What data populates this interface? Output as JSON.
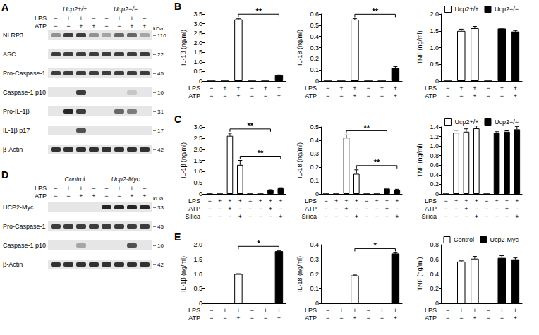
{
  "chart_data": [
    {
      "type": "bar",
      "panel_label": "B",
      "ylabel": "IL-1β (ng/ml)",
      "ylim": [
        0,
        3.5
      ],
      "yticks": [
        0,
        0.5,
        {
          "value": 1,
          "label": "1.0"
        },
        1.5,
        {
          "value": 2,
          "label": "2.0"
        },
        2.5,
        {
          "value": 3,
          "label": "3.0"
        },
        3.5
      ],
      "treatments": [
        {
          "label": "LPS",
          "signs": [
            "−",
            "+",
            "+",
            "−",
            "+",
            "+"
          ]
        },
        {
          "label": "ATP",
          "signs": [
            "−",
            "−",
            "+",
            "−",
            "−",
            "+"
          ]
        }
      ],
      "series": [
        {
          "color": "#ffffff",
          "values": [
            0,
            0,
            3.22,
            null,
            null,
            null
          ],
          "errors": [
            0,
            0,
            0.05,
            null,
            null,
            null
          ]
        },
        {
          "color": "#000000",
          "values": [
            null,
            null,
            null,
            0,
            0,
            0.3
          ],
          "errors": [
            null,
            null,
            null,
            0,
            0,
            0.02
          ]
        }
      ],
      "annotations": [
        {
          "from": 2,
          "to": 5,
          "label": "**"
        }
      ]
    },
    {
      "type": "bar",
      "ylabel": "IL-18 (ng/ml)",
      "ylim": [
        0,
        0.6
      ],
      "yticks": [
        0,
        0.1,
        0.2,
        0.3,
        0.4,
        0.5,
        0.6
      ],
      "treatments": [
        {
          "label": "LPS",
          "signs": [
            "−",
            "+",
            "+",
            "−",
            "+",
            "+"
          ]
        },
        {
          "label": "ATP",
          "signs": [
            "−",
            "−",
            "+",
            "−",
            "−",
            "+"
          ]
        }
      ],
      "series": [
        {
          "color": "#ffffff",
          "values": [
            0,
            0,
            0.55,
            null,
            null,
            null
          ],
          "errors": [
            0,
            0,
            0.01,
            null,
            null,
            null
          ]
        },
        {
          "color": "#000000",
          "values": [
            null,
            null,
            null,
            0,
            0,
            0.12
          ],
          "errors": [
            null,
            null,
            null,
            0,
            0,
            0.01
          ]
        }
      ],
      "annotations": [
        {
          "from": 2,
          "to": 5,
          "label": "**"
        }
      ]
    },
    {
      "type": "bar",
      "ylabel": "TNF (ng/ml)",
      "legend": "upper right",
      "ylim": [
        0,
        2
      ],
      "yticks": [
        0,
        0.5,
        {
          "value": 1,
          "label": "1.0"
        },
        1.5,
        {
          "value": 2,
          "label": "2.0"
        }
      ],
      "treatments": [
        {
          "label": "LPS",
          "signs": [
            "−",
            "+",
            "+",
            "−",
            "+",
            "+"
          ]
        },
        {
          "label": "ATP",
          "signs": [
            "−",
            "−",
            "+",
            "−",
            "−",
            "+"
          ]
        }
      ],
      "series": [
        {
          "name": "Ucp2+/+",
          "color": "#ffffff",
          "values": [
            0,
            1.5,
            1.58,
            null,
            null,
            null
          ],
          "errors": [
            0,
            0.05,
            0.05,
            null,
            null,
            null
          ]
        },
        {
          "name": "Ucp2−/−",
          "color": "#000000",
          "values": [
            null,
            null,
            null,
            0,
            1.57,
            1.48
          ],
          "errors": [
            null,
            null,
            null,
            0,
            0.01,
            0.03
          ]
        }
      ]
    },
    {
      "type": "bar",
      "panel_label": "C",
      "ylabel": "IL-1β (ng/ml)",
      "ylim": [
        0,
        3
      ],
      "yticks": [
        0,
        0.5,
        {
          "value": 1,
          "label": "1.0"
        },
        1.5,
        {
          "value": 2,
          "label": "2.0"
        },
        2.5,
        {
          "value": 3,
          "label": "3.0"
        }
      ],
      "treatments": [
        {
          "label": "LPS",
          "signs": [
            "−",
            "+",
            "+",
            "+",
            "−",
            "+",
            "+",
            "+"
          ]
        },
        {
          "label": "ATP",
          "signs": [
            "−",
            "−",
            "+",
            "−",
            "−",
            "−",
            "+",
            "−"
          ]
        },
        {
          "label": "Silica",
          "signs": [
            "−",
            "−",
            "−",
            "+",
            "−",
            "−",
            "−",
            "+"
          ]
        }
      ],
      "series": [
        {
          "color": "#ffffff",
          "values": [
            0,
            0,
            2.6,
            1.3,
            null,
            null,
            null,
            null
          ],
          "errors": [
            0,
            0,
            0.12,
            0.2,
            null,
            null,
            null,
            null
          ]
        },
        {
          "color": "#000000",
          "values": [
            null,
            null,
            null,
            null,
            0,
            0,
            0.17,
            0.25
          ],
          "errors": [
            null,
            null,
            null,
            null,
            0,
            0,
            0.02,
            0.03
          ]
        }
      ],
      "annotations": [
        {
          "from": 2,
          "to": 6,
          "label": "**"
        },
        {
          "from": 3,
          "to": 7,
          "label": "**"
        }
      ]
    },
    {
      "type": "bar",
      "ylabel": "IL-18 (ng/ml)",
      "ylim": [
        0,
        0.5
      ],
      "yticks": [
        0,
        0.1,
        0.2,
        0.3,
        0.4,
        0.5
      ],
      "treatments": [
        {
          "label": "LPS",
          "signs": [
            "−",
            "+",
            "+",
            "+",
            "−",
            "+",
            "+",
            "+"
          ]
        },
        {
          "label": "ATP",
          "signs": [
            "−",
            "−",
            "+",
            "−",
            "−",
            "−",
            "+",
            "−"
          ]
        },
        {
          "label": "Silica",
          "signs": [
            "−",
            "−",
            "−",
            "+",
            "−",
            "−",
            "−",
            "+"
          ]
        }
      ],
      "series": [
        {
          "color": "#ffffff",
          "values": [
            0,
            0,
            0.42,
            0.15,
            null,
            null,
            null,
            null
          ],
          "errors": [
            0,
            0,
            0.02,
            0.03,
            null,
            null,
            null,
            null
          ]
        },
        {
          "color": "#000000",
          "values": [
            null,
            null,
            null,
            null,
            0,
            0,
            0.04,
            0.03
          ],
          "errors": [
            null,
            null,
            null,
            null,
            0,
            0,
            0.005,
            0.005
          ]
        }
      ],
      "annotations": [
        {
          "from": 2,
          "to": 6,
          "label": "**"
        },
        {
          "from": 3,
          "to": 7,
          "label": "**"
        }
      ]
    },
    {
      "type": "bar",
      "ylabel": "TNF (ng/ml)",
      "legend": "upper right",
      "ylim": [
        0,
        1.4
      ],
      "yticks": [
        0,
        0.2,
        0.4,
        0.6,
        0.8,
        {
          "value": 1,
          "label": "1.0"
        },
        1.2,
        1.4
      ],
      "treatments": [
        {
          "label": "LPS",
          "signs": [
            "−",
            "+",
            "+",
            "+",
            "−",
            "+",
            "+",
            "+"
          ]
        },
        {
          "label": "ATP",
          "signs": [
            "−",
            "−",
            "+",
            "−",
            "−",
            "−",
            "+",
            "−"
          ]
        },
        {
          "label": "Silica",
          "signs": [
            "−",
            "−",
            "−",
            "+",
            "−",
            "−",
            "−",
            "+"
          ]
        }
      ],
      "series": [
        {
          "name": "Ucp2+/+",
          "color": "#ffffff",
          "values": [
            0,
            1.28,
            1.3,
            1.37,
            null,
            null,
            null,
            null
          ],
          "errors": [
            0,
            0.05,
            0.06,
            0.05,
            null,
            null,
            null,
            null
          ]
        },
        {
          "name": "Ucp2−/−",
          "color": "#000000",
          "values": [
            null,
            null,
            null,
            null,
            0,
            1.28,
            1.3,
            1.35
          ],
          "errors": [
            null,
            null,
            null,
            null,
            0,
            0.02,
            0.02,
            0.06
          ]
        }
      ]
    },
    {
      "type": "bar",
      "panel_label": "E",
      "ylabel": "IL-1β (ng/ml)",
      "ylim": [
        0,
        2
      ],
      "yticks": [
        0,
        0.5,
        {
          "value": 1,
          "label": "1.0"
        },
        1.5,
        {
          "value": 2,
          "label": "2.0"
        }
      ],
      "treatments": [
        {
          "label": "LPS",
          "signs": [
            "−",
            "+",
            "+",
            "−",
            "+",
            "+"
          ]
        },
        {
          "label": "ATP",
          "signs": [
            "−",
            "−",
            "+",
            "−",
            "−",
            "+"
          ]
        }
      ],
      "series": [
        {
          "color": "#ffffff",
          "values": [
            0,
            0,
            1.0,
            null,
            null,
            null
          ],
          "errors": [
            0,
            0,
            0.01,
            null,
            null,
            null
          ]
        },
        {
          "color": "#000000",
          "values": [
            null,
            null,
            null,
            0,
            0,
            1.78
          ],
          "errors": [
            null,
            null,
            null,
            0,
            0,
            0.02
          ]
        }
      ],
      "annotations": [
        {
          "from": 2,
          "to": 5,
          "label": "*"
        }
      ]
    },
    {
      "type": "bar",
      "ylabel": "IL-18 (ng/ml)",
      "ylim": [
        0,
        0.4
      ],
      "yticks": [
        0,
        0.1,
        0.2,
        0.3,
        0.4
      ],
      "treatments": [
        {
          "label": "LPS",
          "signs": [
            "−",
            "+",
            "+",
            "−",
            "+",
            "+"
          ]
        },
        {
          "label": "ATP",
          "signs": [
            "−",
            "−",
            "+",
            "−",
            "−",
            "+"
          ]
        }
      ],
      "series": [
        {
          "color": "#ffffff",
          "values": [
            0,
            0,
            0.19,
            null,
            null,
            null
          ],
          "errors": [
            0,
            0,
            0.003,
            null,
            null,
            null
          ]
        },
        {
          "color": "#000000",
          "values": [
            null,
            null,
            null,
            0,
            0,
            0.34
          ],
          "errors": [
            null,
            null,
            null,
            0,
            0,
            0.005
          ]
        }
      ],
      "annotations": [
        {
          "from": 2,
          "to": 5,
          "label": "*"
        }
      ]
    },
    {
      "type": "bar",
      "ylabel": "TNF (ng/ml)",
      "legend": "upper right",
      "ylim": [
        0,
        0.8
      ],
      "yticks": [
        0,
        0.2,
        0.4,
        0.6,
        0.8
      ],
      "treatments": [
        {
          "label": "LPS",
          "signs": [
            "−",
            "+",
            "+",
            "−",
            "+",
            "+"
          ]
        },
        {
          "label": "ATP",
          "signs": [
            "−",
            "−",
            "+",
            "−",
            "−",
            "+"
          ]
        }
      ],
      "series": [
        {
          "name": "Control",
          "color": "#ffffff",
          "values": [
            0,
            0.57,
            0.61,
            null,
            null,
            null
          ],
          "errors": [
            0,
            0.01,
            0.03,
            null,
            null,
            null
          ]
        },
        {
          "name": "Ucp2-Myc",
          "color": "#000000",
          "values": [
            null,
            null,
            null,
            0,
            0.62,
            0.6
          ],
          "errors": [
            null,
            null,
            null,
            0,
            0.03,
            0.02
          ]
        }
      ]
    }
  ],
  "blots": [
    {
      "panel_label": "A",
      "groups": [
        "Ucp2+/+",
        "Ucp2−/−"
      ],
      "kda_label": "kDa",
      "treatments": [
        {
          "label": "LPS",
          "signs": [
            "−",
            "+",
            "+",
            "−",
            "−",
            "+",
            "+",
            "−"
          ]
        },
        {
          "label": "ATP",
          "signs": [
            "−",
            "−",
            "+",
            "+",
            "−",
            "−",
            "+",
            "+"
          ]
        }
      ],
      "rows": [
        {
          "label": "NLRP3",
          "kda": 110,
          "intensity": [
            0.4,
            0.8,
            0.8,
            0.4,
            0.3,
            0.6,
            0.6,
            0.3
          ]
        },
        {
          "label": "ASC",
          "kda": 22,
          "intensity": [
            0.8,
            0.8,
            0.8,
            0.8,
            0.8,
            0.8,
            0.8,
            0.8
          ]
        },
        {
          "label": "Pro-Caspase-1",
          "kda": 45,
          "intensity": [
            0.8,
            0.8,
            0.8,
            0.8,
            0.8,
            0.8,
            0.8,
            0.8
          ]
        },
        {
          "label": "Caspase-1 p10",
          "kda": 10,
          "intensity": [
            0,
            0,
            0.8,
            0,
            0,
            0,
            0.15,
            0
          ]
        },
        {
          "label": "Pro-IL-1β",
          "kda": 31,
          "intensity": [
            0,
            0.9,
            0.8,
            0,
            0,
            0.6,
            0.5,
            0
          ]
        },
        {
          "label": "IL-1β p17",
          "kda": 17,
          "intensity": [
            0,
            0,
            0.7,
            0,
            0,
            0,
            0,
            0
          ]
        },
        {
          "label": "β-Actin",
          "kda": 42,
          "intensity": [
            0.85,
            0.85,
            0.85,
            0.85,
            0.85,
            0.85,
            0.85,
            0.85
          ]
        }
      ]
    },
    {
      "panel_label": "D",
      "groups": [
        "Control",
        "Ucp2-Myc"
      ],
      "kda_label": "kDa",
      "treatments": [
        {
          "label": "LPS",
          "signs": [
            "−",
            "+",
            "+",
            "−",
            "−",
            "+",
            "+",
            "−"
          ]
        },
        {
          "label": "ATP",
          "signs": [
            "−",
            "−",
            "+",
            "+",
            "−",
            "−",
            "+",
            "+"
          ]
        }
      ],
      "rows": [
        {
          "label": "UCP2-Myc",
          "kda": 33,
          "intensity": [
            0,
            0,
            0,
            0,
            0.9,
            0.9,
            0.9,
            0.9
          ]
        },
        {
          "label": "Pro-Caspase-1",
          "kda": 45,
          "intensity": [
            0.8,
            0.8,
            0.8,
            0.8,
            0.8,
            0.8,
            0.8,
            0.8
          ]
        },
        {
          "label": "Caspase-1 p10",
          "kda": 10,
          "intensity": [
            0,
            0,
            0.3,
            0,
            0,
            0,
            0.7,
            0
          ]
        },
        {
          "label": "β-Actin",
          "kda": 42,
          "intensity": [
            0.85,
            0.85,
            0.85,
            0.85,
            0.85,
            0.85,
            0.85,
            0.85
          ]
        }
      ]
    }
  ]
}
